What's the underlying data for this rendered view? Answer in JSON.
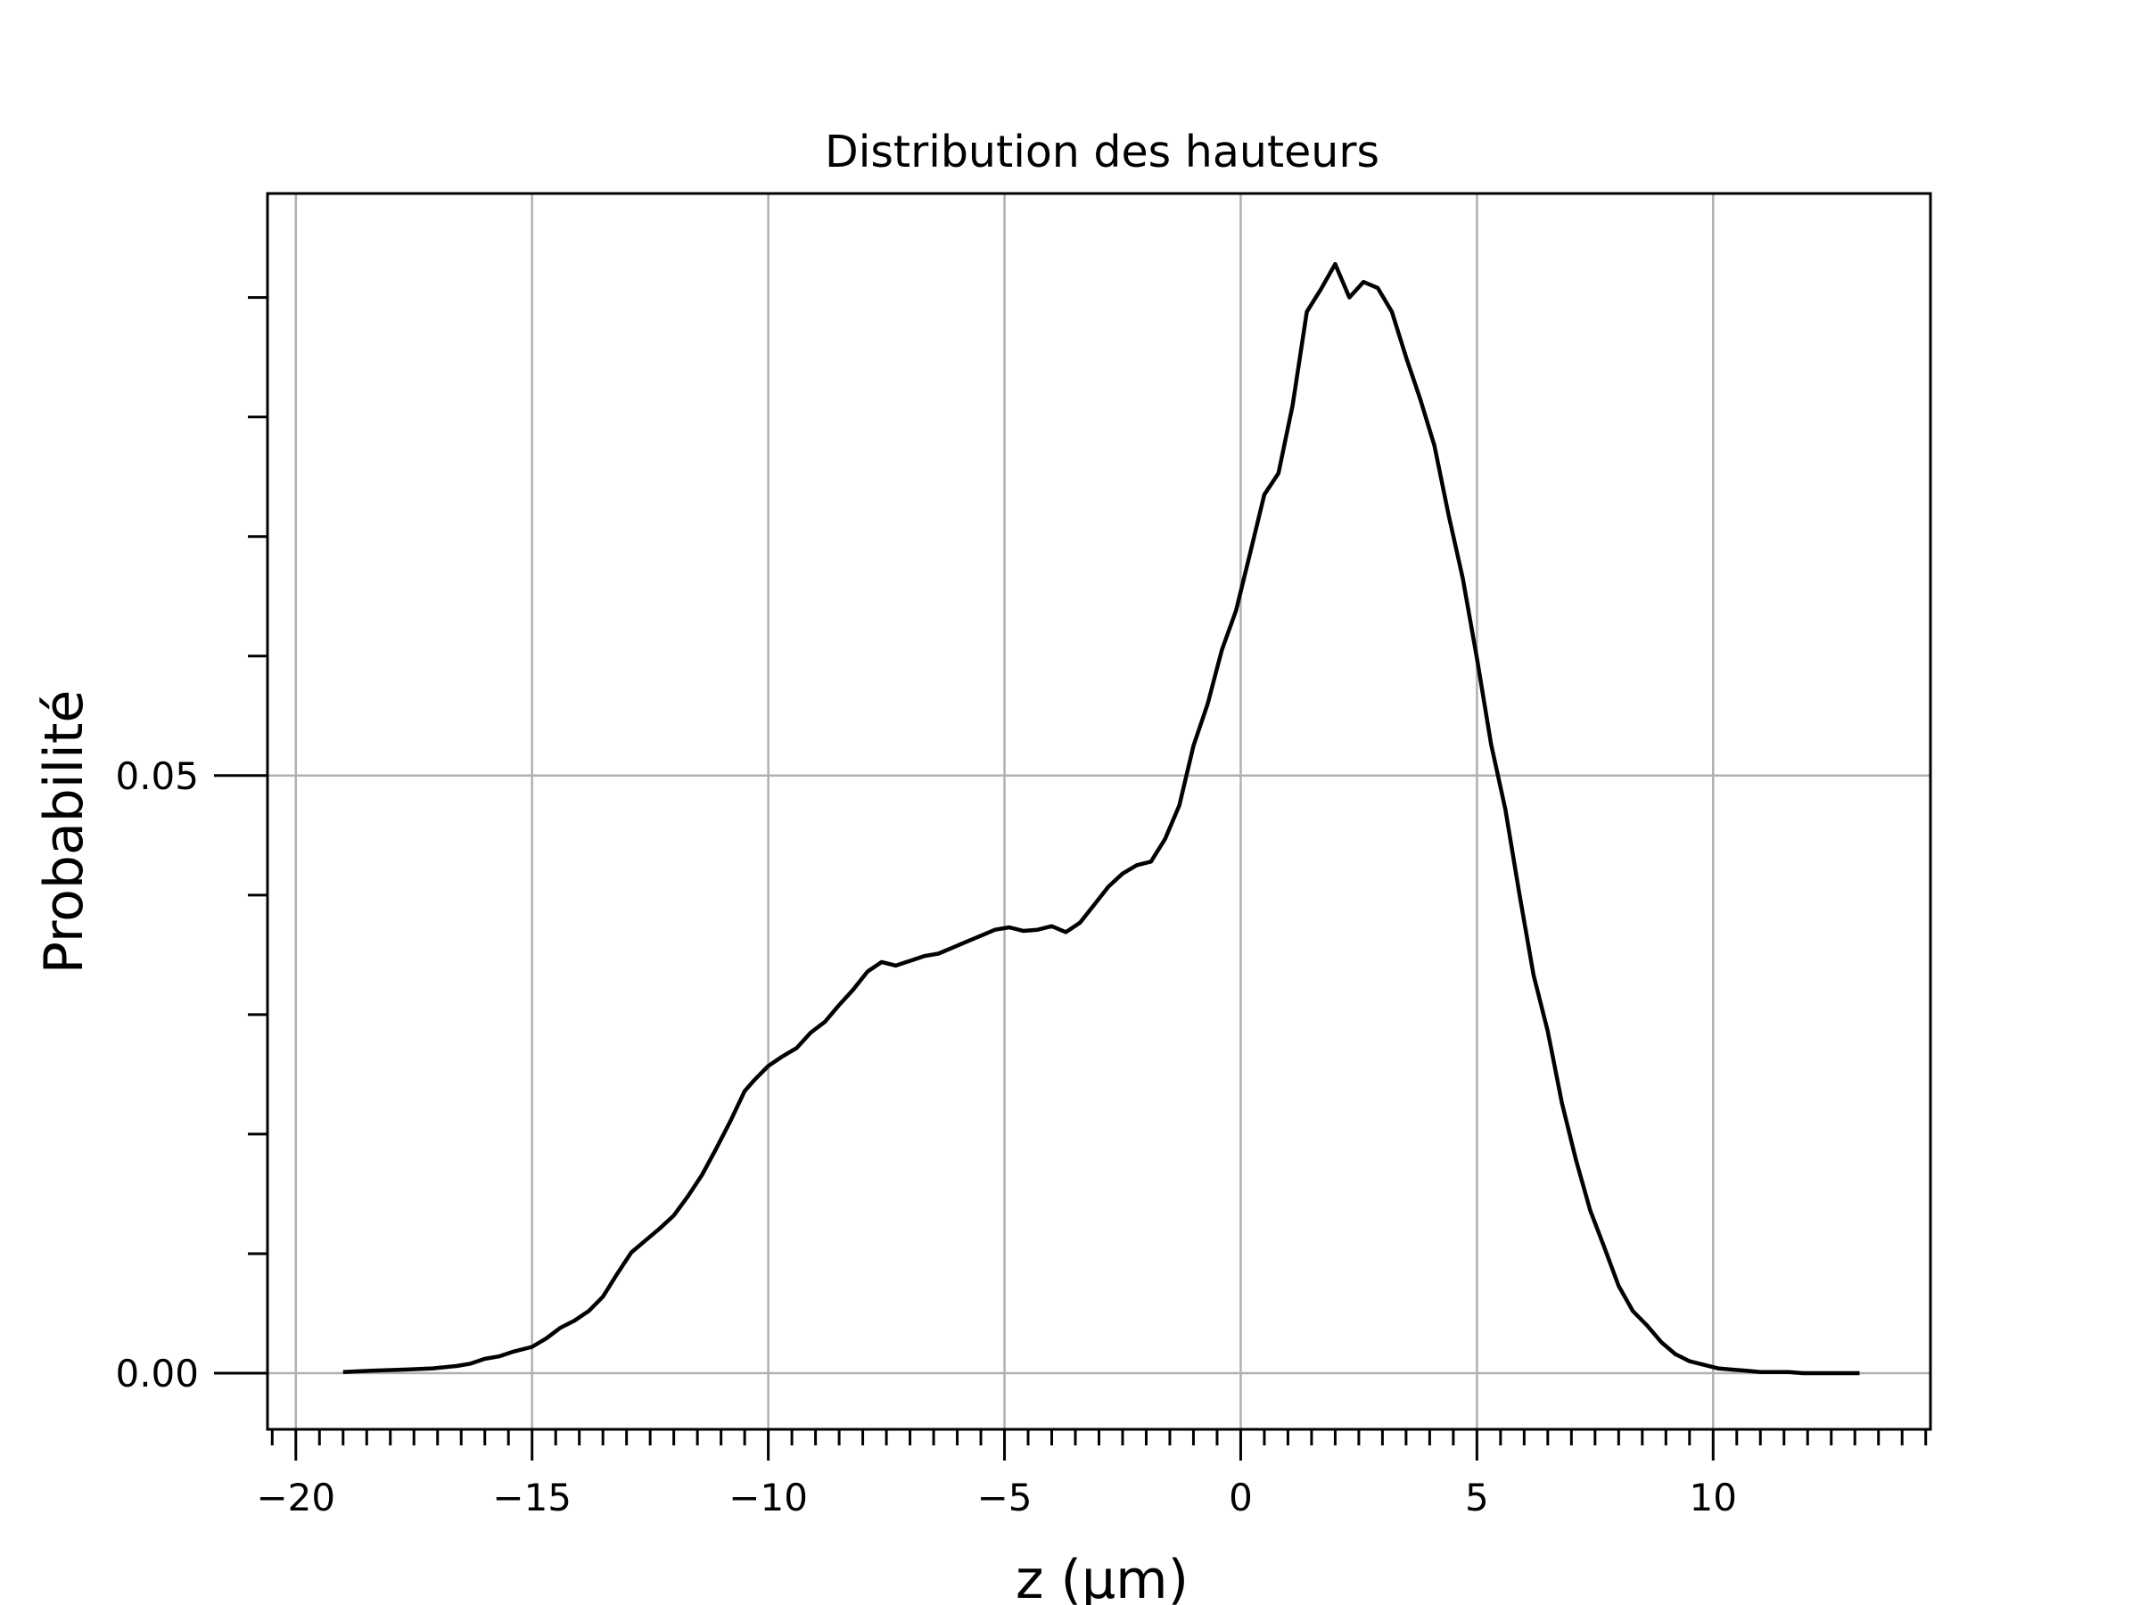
{
  "chart_data": {
    "type": "line",
    "title": "Distribution des hauteurs",
    "xlabel": "z (µm)",
    "ylabel": "Probabilité",
    "xlim": [
      -20.6,
      14.6
    ],
    "ylim": [
      -0.0047,
      0.0987
    ],
    "x_ticks": [
      -20,
      -15,
      -10,
      -5,
      0,
      5,
      10
    ],
    "x_tick_labels": [
      "−20",
      "−15",
      "−10",
      "−5",
      "0",
      "5",
      "10"
    ],
    "x_minor_step": 0.5,
    "y_ticks": [
      0.0,
      0.05
    ],
    "y_tick_labels": [
      "0.00",
      "0.05"
    ],
    "y_minor_step": 0.01,
    "grid": true,
    "series": [
      {
        "color": "#000000",
        "x": [
          -19.0,
          -18.4,
          -17.7,
          -17.1,
          -16.6,
          -16.3,
          -16.0,
          -15.7,
          -15.4,
          -15.0,
          -14.7,
          -14.4,
          -14.1,
          -13.8,
          -13.5,
          -13.2,
          -12.9,
          -12.6,
          -12.3,
          -12.0,
          -11.7,
          -11.4,
          -11.1,
          -10.8,
          -10.5,
          -10.3,
          -10.0,
          -9.7,
          -9.4,
          -9.1,
          -8.8,
          -8.5,
          -8.2,
          -7.9,
          -7.6,
          -7.3,
          -7.0,
          -6.7,
          -6.4,
          -6.1,
          -5.8,
          -5.5,
          -5.2,
          -4.9,
          -4.6,
          -4.3,
          -4.0,
          -3.7,
          -3.4,
          -3.1,
          -2.8,
          -2.5,
          -2.2,
          -1.9,
          -1.6,
          -1.3,
          -1.0,
          -0.7,
          -0.4,
          -0.1,
          0.2,
          0.5,
          0.8,
          1.1,
          1.4,
          1.7,
          2.0,
          2.3,
          2.6,
          2.9,
          3.2,
          3.5,
          3.8,
          4.1,
          4.4,
          4.7,
          5.0,
          5.3,
          5.6,
          5.9,
          6.2,
          6.5,
          6.8,
          7.1,
          7.4,
          7.7,
          8.0,
          8.3,
          8.6,
          8.9,
          9.2,
          9.5,
          9.8,
          10.1,
          10.4,
          10.7,
          11.0,
          11.3,
          11.6,
          11.9,
          12.2,
          12.5,
          12.8,
          13.1
        ],
        "y": [
          0.0001,
          0.0002,
          0.0003,
          0.0004,
          0.0006,
          0.0008,
          0.0012,
          0.0014,
          0.0018,
          0.0022,
          0.0029,
          0.0038,
          0.0044,
          0.0052,
          0.0064,
          0.0083,
          0.0101,
          0.0111,
          0.0121,
          0.0132,
          0.0148,
          0.0166,
          0.0188,
          0.0211,
          0.0236,
          0.0245,
          0.0257,
          0.0265,
          0.0272,
          0.0285,
          0.0294,
          0.0308,
          0.0321,
          0.0336,
          0.0344,
          0.0341,
          0.0345,
          0.0349,
          0.0351,
          0.0356,
          0.0361,
          0.0366,
          0.0371,
          0.0373,
          0.037,
          0.0371,
          0.0374,
          0.0369,
          0.0377,
          0.0392,
          0.0407,
          0.0418,
          0.0425,
          0.0428,
          0.0447,
          0.0475,
          0.0525,
          0.056,
          0.0605,
          0.0638,
          0.0686,
          0.0735,
          0.0753,
          0.081,
          0.0888,
          0.0907,
          0.0928,
          0.09,
          0.0913,
          0.0908,
          0.0888,
          0.085,
          0.0815,
          0.0776,
          0.0718,
          0.0665,
          0.0598,
          0.0526,
          0.0472,
          0.0401,
          0.0333,
          0.0286,
          0.0226,
          0.0178,
          0.0136,
          0.0105,
          0.0073,
          0.0052,
          0.004,
          0.0026,
          0.0016,
          0.001,
          0.0007,
          0.0004,
          0.0003,
          0.0002,
          0.0001,
          0.0001,
          0.0001,
          0.0,
          0.0,
          0.0,
          0.0,
          0.0
        ]
      }
    ]
  }
}
